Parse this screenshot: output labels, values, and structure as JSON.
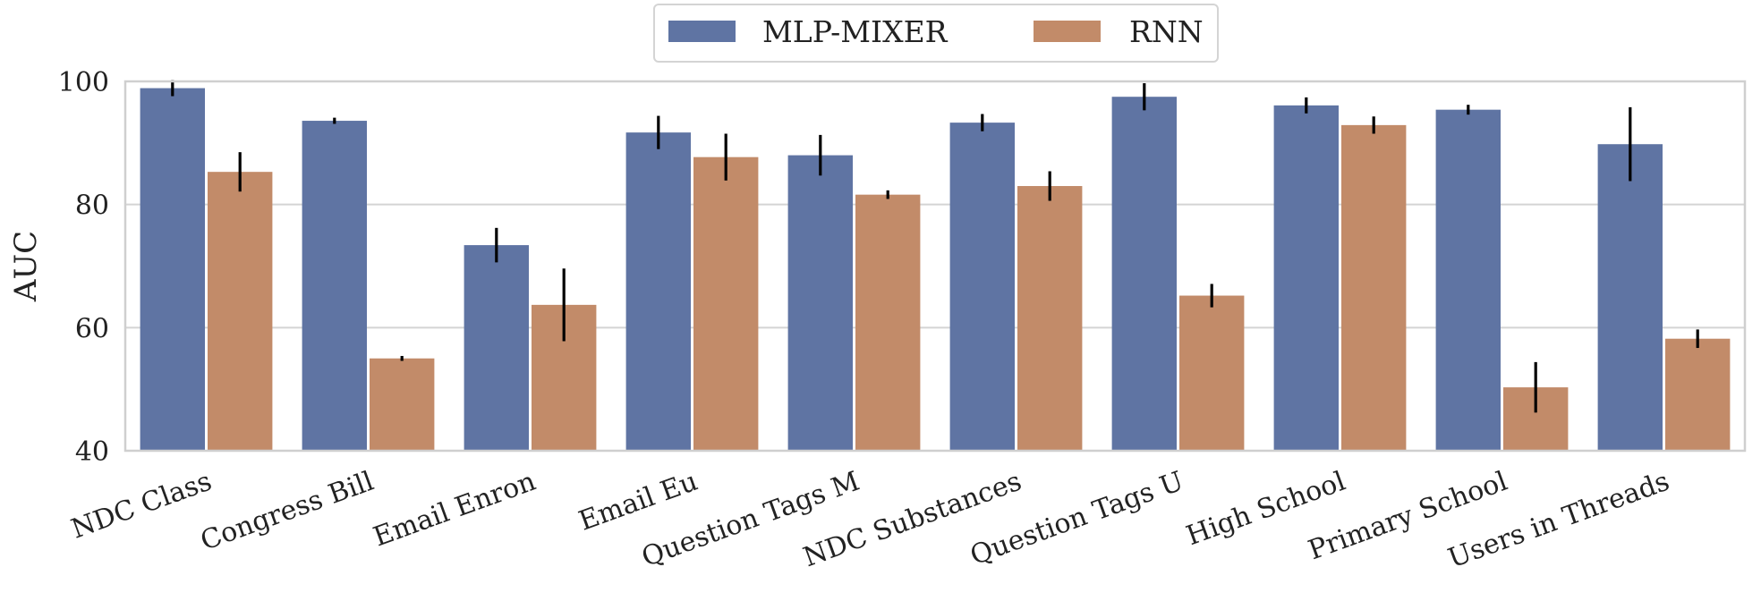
{
  "chart_data": {
    "type": "bar",
    "title": "",
    "xlabel": "",
    "ylabel": "AUC",
    "ylim": [
      40,
      100
    ],
    "yticks": [
      40,
      60,
      80,
      100
    ],
    "grid": true,
    "legend_position": "top-center",
    "categories": [
      "NDC Class",
      "Congress Bill",
      "Email Enron",
      "Email Eu",
      "Question Tags M",
      "NDC Substances",
      "Question Tags U",
      "High School",
      "Primary School",
      "Users in Threads"
    ],
    "series": [
      {
        "name": "MLP-MIXER",
        "color": "#5f74a3",
        "values": [
          98.9,
          93.6,
          73.4,
          91.7,
          88.0,
          93.3,
          97.5,
          96.1,
          95.4,
          89.8
        ],
        "errors": [
          1.3,
          0.5,
          2.8,
          2.7,
          3.3,
          1.4,
          2.2,
          1.3,
          0.8,
          6.0
        ]
      },
      {
        "name": "RNN",
        "color": "#c28b69",
        "values": [
          85.3,
          55.0,
          63.7,
          87.7,
          81.6,
          83.0,
          65.2,
          92.9,
          50.3,
          58.2
        ],
        "errors": [
          3.2,
          0.4,
          5.9,
          3.8,
          0.7,
          2.4,
          1.9,
          1.4,
          4.1,
          1.5
        ]
      }
    ]
  }
}
